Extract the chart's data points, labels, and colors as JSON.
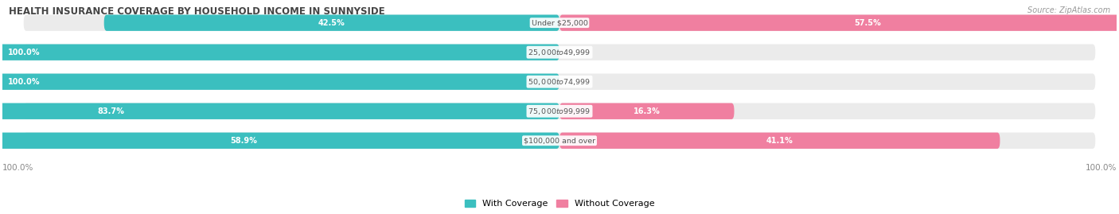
{
  "title": "HEALTH INSURANCE COVERAGE BY HOUSEHOLD INCOME IN SUNNYSIDE",
  "source": "Source: ZipAtlas.com",
  "categories": [
    "Under $25,000",
    "$25,000 to $49,999",
    "$50,000 to $74,999",
    "$75,000 to $99,999",
    "$100,000 and over"
  ],
  "with_coverage": [
    42.5,
    100.0,
    100.0,
    83.7,
    58.9
  ],
  "without_coverage": [
    57.5,
    0.0,
    0.0,
    16.3,
    41.1
  ],
  "color_with": "#3bbfbf",
  "color_without": "#f07fa0",
  "bg_bar": "#ebebeb",
  "bg_figure": "#ffffff",
  "bar_height": 0.55,
  "rounding": 0.25,
  "legend_with": "With Coverage",
  "legend_without": "Without Coverage",
  "axis_label_left": "100.0%",
  "axis_label_right": "100.0%"
}
